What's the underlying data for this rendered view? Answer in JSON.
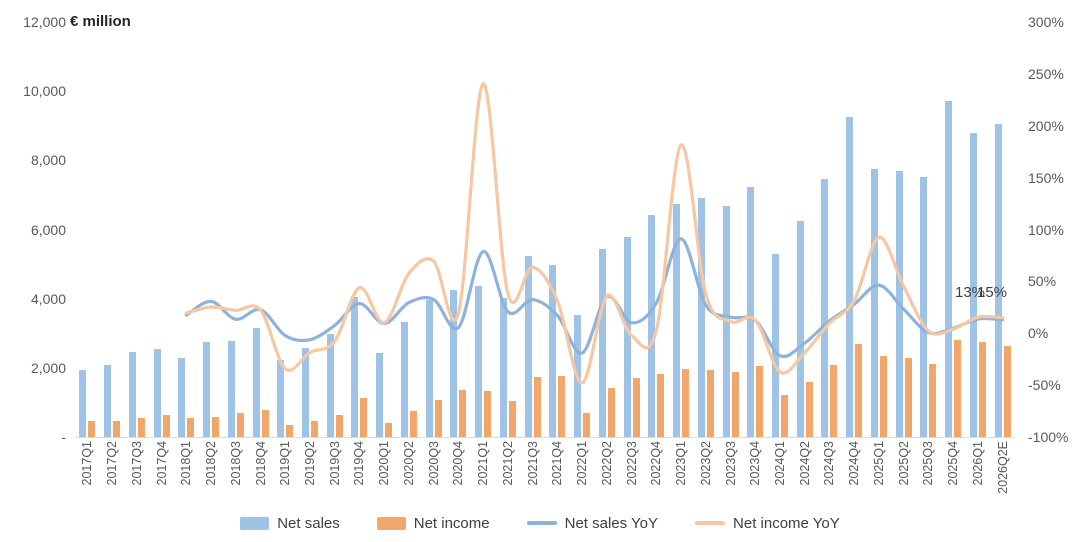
{
  "chart_data": {
    "type": "bar",
    "subtype": "combo-bar-line",
    "title": "",
    "left_axis": {
      "title": "€ million",
      "ticks": [
        "12,000",
        "10,000",
        "8,000",
        "6,000",
        "4,000",
        "2,000",
        "-"
      ],
      "tick_values": [
        12000,
        10000,
        8000,
        6000,
        4000,
        2000,
        0
      ],
      "min": 0,
      "max": 12000
    },
    "right_axis": {
      "ticks": [
        "300%",
        "250%",
        "200%",
        "150%",
        "100%",
        "50%",
        "0%",
        "-50%",
        "-100%"
      ],
      "tick_values": [
        300,
        250,
        200,
        150,
        100,
        50,
        0,
        -50,
        -100
      ],
      "min": -100,
      "max": 300
    },
    "grid": false,
    "legend_position": "bottom",
    "categories": [
      "2017Q1",
      "2017Q2",
      "2017Q3",
      "2017Q4",
      "2018Q1",
      "2018Q2",
      "2018Q3",
      "2018Q4",
      "2019Q1",
      "2019Q2",
      "2019Q3",
      "2019Q4",
      "2020Q1",
      "2020Q2",
      "2020Q3",
      "2020Q4",
      "2021Q1",
      "2021Q2",
      "2021Q3",
      "2021Q4",
      "2022Q1",
      "2022Q2",
      "2022Q3",
      "2022Q4",
      "2023Q1",
      "2023Q2",
      "2023Q3",
      "2023Q4",
      "2024Q1",
      "2024Q2",
      "2024Q3",
      "2024Q4",
      "2025Q1",
      "2025Q2",
      "2025Q3",
      "2025Q4",
      "2026Q1",
      "2026Q2E"
    ],
    "series": [
      {
        "name": "Net sales",
        "type": "bar",
        "axis": "left",
        "color": "#9EC3E6",
        "values": [
          1944,
          2096,
          2447,
          2559,
          2285,
          2739,
          2776,
          3139,
          2232,
          2568,
          2987,
          4036,
          2441,
          3326,
          3958,
          4254,
          4364,
          4019,
          5241,
          4986,
          3534,
          5431,
          5778,
          6434,
          6746,
          6902,
          6673,
          7237,
          5290,
          6243,
          7467,
          9263,
          7742,
          7692,
          7516,
          9716,
          8800,
          9040
        ]
      },
      {
        "name": "Net income",
        "type": "bar",
        "axis": "left",
        "color": "#F1A76C",
        "values": [
          452,
          466,
          557,
          644,
          540,
          584,
          680,
          788,
          355,
          476,
          627,
          1134,
          391,
          751,
          1063,
          1351,
          1331,
          1038,
          1740,
          1774,
          695,
          1410,
          1701,
          1817,
          1956,
          1942,
          1893,
          2048,
          1224,
          1578,
          2077,
          2693,
          2355,
          2290,
          2125,
          2800,
          2750,
          2630
        ]
      },
      {
        "name": "Net sales YoY",
        "type": "line",
        "axis": "right",
        "color": "#8FB2DB",
        "start_index": 4,
        "values_pct": [
          17.5,
          30.7,
          13.4,
          22.7,
          -2.3,
          -6.2,
          7.6,
          28.6,
          9.4,
          29.5,
          32.5,
          5.4,
          78.8,
          20.8,
          32.4,
          17.2,
          -19.0,
          35.1,
          10.2,
          29.0,
          90.9,
          27.1,
          15.5,
          12.5,
          -21.6,
          -9.5,
          11.9,
          28.0,
          46.4,
          23.2,
          0.7,
          4.9,
          13.7,
          13.0
        ]
      },
      {
        "name": "Net income YoY",
        "type": "line",
        "axis": "right",
        "color": "#F6C7A2",
        "start_index": 4,
        "values_pct": [
          19.5,
          25.3,
          22.1,
          22.4,
          -34.3,
          -18.5,
          -7.8,
          43.9,
          10.1,
          57.8,
          69.5,
          19.1,
          240.4,
          38.2,
          63.7,
          31.3,
          -47.8,
          35.8,
          -2.2,
          2.4,
          181.4,
          37.7,
          11.3,
          12.7,
          -37.4,
          -18.7,
          9.7,
          31.5,
          92.4,
          45.1,
          2.3,
          4.0,
          15.5,
          15.0
        ]
      }
    ],
    "annotations": [
      {
        "text": "13%",
        "series": "Net sales YoY",
        "at": "2026Q2E"
      },
      {
        "text": "15%",
        "series": "Net income YoY",
        "at": "2026Q2E"
      }
    ],
    "legend": [
      "Net sales",
      "Net income",
      "Net sales YoY",
      "Net income YoY"
    ]
  }
}
